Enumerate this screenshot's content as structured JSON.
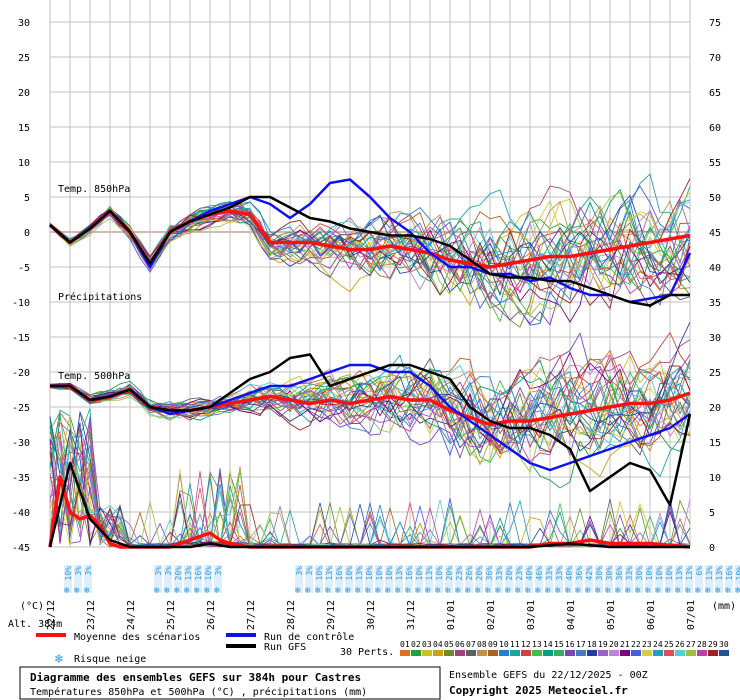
{
  "chart_data": {
    "type": "line",
    "title": "Diagramme des ensembles GEFS sur 384h pour Castres",
    "subtitle": "Températures 850hPa et 500hPa (°C) , précipitations (mm)",
    "altitude": "Alt. 384m",
    "ensemble_info": "Ensemble GEFS du 22/12/2025 - 00Z",
    "copyright": "Copyright 2025 Meteociel.fr",
    "left_axis_unit": "(°C)",
    "right_axis_unit": "(mm)",
    "left_ticks": [
      30,
      25,
      20,
      15,
      10,
      5,
      0,
      -5,
      -10,
      -15,
      -20,
      -25,
      -30,
      -35,
      -40,
      -45
    ],
    "right_ticks": [
      75,
      70,
      65,
      60,
      55,
      50,
      45,
      40,
      35,
      30,
      25,
      20,
      15,
      10,
      5,
      0
    ],
    "ylim_temp": [
      -45,
      30
    ],
    "ylim_precip": [
      0,
      75
    ],
    "x_dates": [
      "22/12",
      "23/12",
      "24/12",
      "25/12",
      "26/12",
      "27/12",
      "28/12",
      "29/12",
      "30/12",
      "31/12",
      "01/01",
      "02/01",
      "03/01",
      "04/01",
      "05/01",
      "06/01",
      "07/01"
    ],
    "section_labels": {
      "t850": "Temp. 850hPa",
      "precip": "Précipitations",
      "t500": "Temp. 500hPa"
    },
    "legend": {
      "mean": "Moyenne des scénarios",
      "control": "Run de contrôle",
      "gfs": "Run GFS",
      "snow": "Risque neige",
      "perts": "30 Perts."
    },
    "snow_risk_group1": [
      "10%",
      "3%",
      "3%"
    ],
    "snow_risk_group2": [
      "3%",
      "3%",
      "20%",
      "13%",
      "16%",
      "10%"
    ],
    "snow_risk_group3": [
      "3%"
    ],
    "snow_risk_group4": [
      "3%",
      "3%",
      "10%",
      "13%",
      "16%",
      "10%",
      "13%",
      "10%",
      "10%",
      "10%",
      "13%",
      "16%",
      "10%",
      "13%",
      "10%",
      "20%",
      "23%",
      "26%",
      "20%",
      "36%",
      "33%",
      "20%",
      "23%",
      "40%",
      "46%",
      "33%",
      "33%",
      "40%",
      "36%",
      "42%",
      "30%",
      "30%",
      "36%",
      "33%",
      "30%",
      "10%",
      "10%",
      "10%",
      "13%",
      "13%",
      "6%",
      "13%",
      "13%",
      "16%",
      "10%",
      "16%",
      "16%"
    ],
    "member_labels": [
      "01",
      "02",
      "03",
      "04",
      "05",
      "06",
      "07",
      "08",
      "09",
      "10",
      "11",
      "12",
      "13",
      "14",
      "15",
      "16",
      "17",
      "18",
      "19",
      "20",
      "21",
      "22",
      "23",
      "24",
      "25",
      "26",
      "27",
      "28",
      "29",
      "30"
    ],
    "member_colors": [
      "#e07020",
      "#20a040",
      "#d0c020",
      "#d0a010",
      "#6c8c20",
      "#a04080",
      "#606060",
      "#c09050",
      "#b06020",
      "#2080d0",
      "#20a0a0",
      "#d04040",
      "#40c040",
      "#00a080",
      "#30b060",
      "#8040c0",
      "#4080c0",
      "#2040a0",
      "#a060c0",
      "#c080e0",
      "#800080",
      "#4060e0",
      "#d0d040",
      "#20a0c0",
      "#e05050",
      "#50d0d0",
      "#a0c040",
      "#c040a0",
      "#a02020",
      "#2050a0"
    ],
    "colors": {
      "mean": "#ff1010",
      "control": "#1010ee",
      "gfs": "#000000",
      "grid": "#c0c0c0",
      "zero_line": "#c0a0a0",
      "snow": "#3399dd"
    },
    "series": [
      {
        "name": "Moyenne des scénarios",
        "variable": "T850",
        "x": [
          0,
          0.5,
          1,
          1.5,
          2,
          2.5,
          3,
          3.5,
          4,
          4.5,
          5,
          5.5,
          6,
          6.5,
          7,
          7.5,
          8,
          8.5,
          9,
          9.5,
          10,
          10.5,
          11,
          11.5,
          12,
          12.5,
          13,
          13.5,
          14,
          14.5,
          15,
          15.5,
          16
        ],
        "y": [
          1,
          -1.5,
          0.5,
          3,
          0,
          -4.5,
          0,
          1.5,
          2.5,
          3,
          2.5,
          -1.5,
          -1.5,
          -1.5,
          -2,
          -2.5,
          -2.5,
          -2,
          -2.5,
          -3,
          -4,
          -4.5,
          -5,
          -4.5,
          -4,
          -3.5,
          -3.5,
          -3,
          -2.5,
          -2,
          -1.5,
          -1,
          -0.5
        ]
      },
      {
        "name": "Run de contrôle",
        "variable": "T850",
        "x": [
          0,
          0.5,
          1,
          1.5,
          2,
          2.5,
          3,
          3.5,
          4,
          4.5,
          5,
          5.5,
          6,
          6.5,
          7,
          7.5,
          8,
          8.5,
          9,
          9.5,
          10,
          10.5,
          11,
          11.5,
          12,
          12.5,
          13,
          13.5,
          14,
          14.5,
          15,
          15.5,
          16
        ],
        "y": [
          1,
          -1.5,
          0.5,
          3,
          0,
          -5,
          0,
          1.5,
          3,
          4,
          5,
          4,
          2,
          4,
          7,
          7.5,
          5,
          2,
          0,
          -3,
          -5,
          -5,
          -6,
          -6,
          -7,
          -6.5,
          -8,
          -9,
          -9,
          -10,
          -9.5,
          -9,
          -3
        ]
      },
      {
        "name": "Run GFS",
        "variable": "T850",
        "x": [
          0,
          0.5,
          1,
          1.5,
          2,
          2.5,
          3,
          3.5,
          4,
          4.5,
          5,
          5.5,
          6,
          6.5,
          7,
          7.5,
          8,
          8.5,
          9,
          9.5,
          10,
          10.5,
          11,
          11.5,
          12,
          12.5,
          13,
          13.5,
          14,
          14.5,
          15,
          15.5,
          16
        ],
        "y": [
          1,
          -1.5,
          0.5,
          3,
          0,
          -4.5,
          0,
          1.5,
          2.5,
          3.5,
          5,
          5,
          3.5,
          2,
          1.5,
          0.5,
          0,
          -0.5,
          -0.5,
          -1,
          -2,
          -4,
          -6,
          -6.5,
          -6.5,
          -7,
          -7,
          -8,
          -9,
          -10,
          -10.5,
          -9,
          -9
        ]
      },
      {
        "name": "Moyenne des scénarios",
        "variable": "T500",
        "x": [
          0,
          0.5,
          1,
          1.5,
          2,
          2.5,
          3,
          3.5,
          4,
          4.5,
          5,
          5.5,
          6,
          6.5,
          7,
          7.5,
          8,
          8.5,
          9,
          9.5,
          10,
          10.5,
          11,
          11.5,
          12,
          12.5,
          13,
          13.5,
          14,
          14.5,
          15,
          15.5,
          16
        ],
        "y": [
          -22,
          -22,
          -24,
          -23.5,
          -22.5,
          -25,
          -25.5,
          -25.5,
          -25,
          -24.5,
          -24,
          -23.5,
          -24,
          -24.5,
          -24,
          -24.5,
          -24,
          -23.5,
          -24,
          -24,
          -25.5,
          -26.5,
          -27.5,
          -27,
          -27,
          -26.5,
          -26,
          -25.5,
          -25,
          -24.5,
          -24.5,
          -24,
          -23
        ]
      },
      {
        "name": "Run de contrôle",
        "variable": "T500",
        "x": [
          0,
          0.5,
          1,
          1.5,
          2,
          2.5,
          3,
          3.5,
          4,
          4.5,
          5,
          5.5,
          6,
          6.5,
          7,
          7.5,
          8,
          8.5,
          9,
          9.5,
          10,
          10.5,
          11,
          11.5,
          12,
          12.5,
          13,
          13.5,
          14,
          14.5,
          15,
          15.5,
          16
        ],
        "y": [
          -22,
          -22,
          -24,
          -23.5,
          -22.5,
          -25,
          -26,
          -25.5,
          -25,
          -24,
          -23,
          -22,
          -22,
          -21,
          -20,
          -19,
          -19,
          -20,
          -20,
          -22,
          -25,
          -27,
          -29,
          -31,
          -33,
          -34,
          -33,
          -32,
          -31,
          -30,
          -29,
          -28,
          -26
        ]
      },
      {
        "name": "Run GFS",
        "variable": "T500",
        "x": [
          0,
          0.5,
          1,
          1.5,
          2,
          2.5,
          3,
          3.5,
          4,
          4.5,
          5,
          5.5,
          6,
          6.5,
          7,
          7.5,
          8,
          8.5,
          9,
          9.5,
          10,
          10.5,
          11,
          11.5,
          12,
          12.5,
          13,
          13.5,
          14,
          14.5,
          15,
          15.5,
          16
        ],
        "y": [
          -22,
          -22,
          -24,
          -23.5,
          -22.5,
          -25,
          -25.5,
          -25.5,
          -25,
          -23,
          -21,
          -20,
          -18,
          -17.5,
          -22,
          -21,
          -20,
          -19,
          -19,
          -20,
          -21,
          -25,
          -27,
          -28,
          -28,
          -29,
          -31,
          -37,
          -35,
          -33,
          -34,
          -39,
          -26
        ]
      },
      {
        "name": "Moyenne des scénarios",
        "variable": "precip",
        "x": [
          0,
          0.25,
          0.5,
          0.75,
          1,
          1.25,
          1.5,
          1.75,
          2,
          2.5,
          3,
          3.5,
          3.75,
          4,
          4.25,
          4.5,
          5,
          6,
          7,
          8,
          9,
          10,
          11,
          12,
          12.5,
          13,
          13.5,
          14,
          15,
          16
        ],
        "y": [
          0,
          10,
          5,
          4,
          4.5,
          3,
          0.5,
          0,
          0,
          0,
          0,
          1,
          1.5,
          2,
          1,
          0.5,
          0,
          0,
          0,
          0,
          0,
          0,
          0,
          0,
          0.5,
          0.5,
          1,
          0.5,
          0.5,
          0
        ]
      },
      {
        "name": "Run GFS",
        "variable": "precip",
        "x": [
          0,
          0.5,
          1,
          1.5,
          2,
          2.5,
          3,
          3.5,
          4,
          4.5,
          5,
          6,
          7,
          8,
          9,
          10,
          11,
          12,
          13,
          14,
          15,
          16
        ],
        "y": [
          0,
          12,
          4,
          1,
          0,
          0,
          0,
          0,
          0.5,
          0,
          0,
          0,
          0,
          0,
          0,
          0,
          0,
          0,
          0.5,
          0,
          0,
          0
        ]
      }
    ]
  },
  "footer": {
    "title": "Diagramme des ensembles GEFS sur 384h pour Castres",
    "subtitle": "Températures 850hPa et 500hPa (°C) , précipitations (mm)",
    "info": "Ensemble GEFS du 22/12/2025 - 00Z",
    "copyright": "Copyright 2025 Meteociel.fr"
  }
}
